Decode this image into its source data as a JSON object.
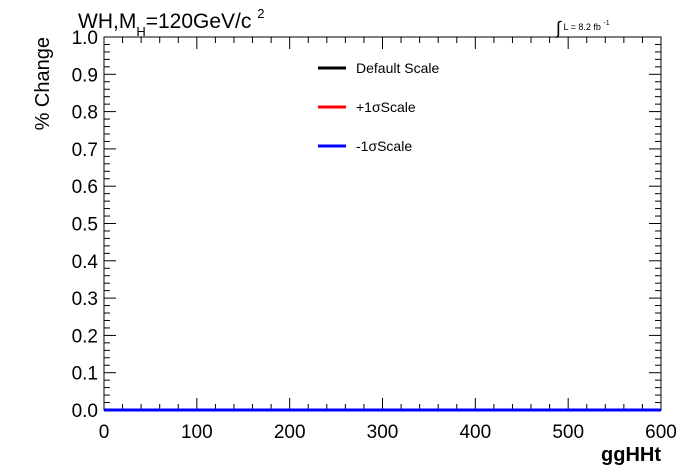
{
  "header": {
    "title_prefix": "WH,M",
    "title_sub": "H",
    "title_main": "=120GeV/c",
    "title_sup": "2",
    "lumi_int": "∫",
    "lumi_text": "L = 8.2 fb",
    "lumi_sup": "-1"
  },
  "chart_data": {
    "type": "line",
    "xlabel": "ggHHt",
    "ylabel": "% Change",
    "xlim": [
      0,
      600
    ],
    "ylim": [
      0,
      1.0
    ],
    "x_ticks": [
      "0",
      "100",
      "200",
      "300",
      "400",
      "500",
      "600"
    ],
    "y_ticks": [
      "0.0",
      "0.1",
      "0.2",
      "0.3",
      "0.4",
      "0.5",
      "0.6",
      "0.7",
      "0.8",
      "0.9",
      "1.0"
    ],
    "legend_position": "top-center",
    "grid": false,
    "series": [
      {
        "name": "Default Scale",
        "color": "#000000",
        "x": [
          0,
          600
        ],
        "y": [
          0,
          0
        ]
      },
      {
        "name": "+1σScale",
        "color": "#ff0000",
        "x": [
          0,
          600
        ],
        "y": [
          0,
          0
        ]
      },
      {
        "name": "-1σScale",
        "color": "#0000ff",
        "x": [
          0,
          600
        ],
        "y": [
          0,
          0
        ]
      }
    ]
  }
}
